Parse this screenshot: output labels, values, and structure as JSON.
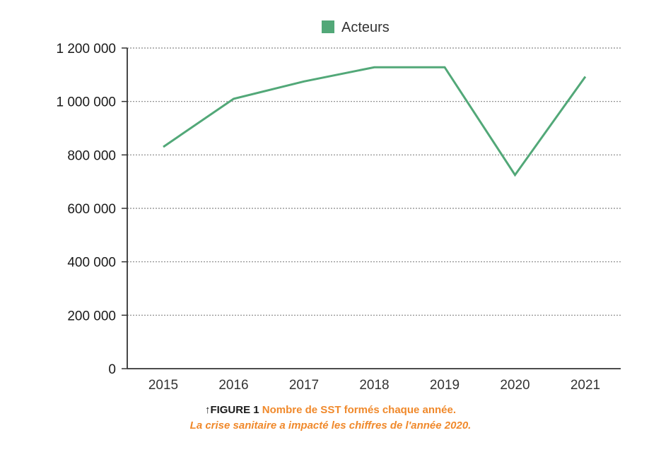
{
  "chart_data": {
    "type": "line",
    "categories": [
      "2015",
      "2016",
      "2017",
      "2018",
      "2019",
      "2020",
      "2021"
    ],
    "series": [
      {
        "name": "Acteurs",
        "values": [
          830000,
          1010000,
          1075000,
          1128000,
          1128000,
          725000,
          1093000
        ]
      }
    ],
    "ylim": [
      0,
      1200000
    ],
    "yticks": [
      0,
      200000,
      400000,
      600000,
      800000,
      1000000,
      1200000
    ],
    "ytick_labels": [
      "0",
      "200 000",
      "400 000",
      "600 000",
      "800 000",
      "1 000 000",
      "1 200 000"
    ],
    "grid": true,
    "legend_position": "top-center",
    "colors": {
      "series": "#52a878",
      "axis": "#333333",
      "grid": "#888888"
    }
  },
  "caption": {
    "prefix": "↑FIGURE 1",
    "title": "Nombre de SST formés chaque année.",
    "subtitle": "La crise sanitaire a impacté les chiffres de l'année 2020."
  }
}
